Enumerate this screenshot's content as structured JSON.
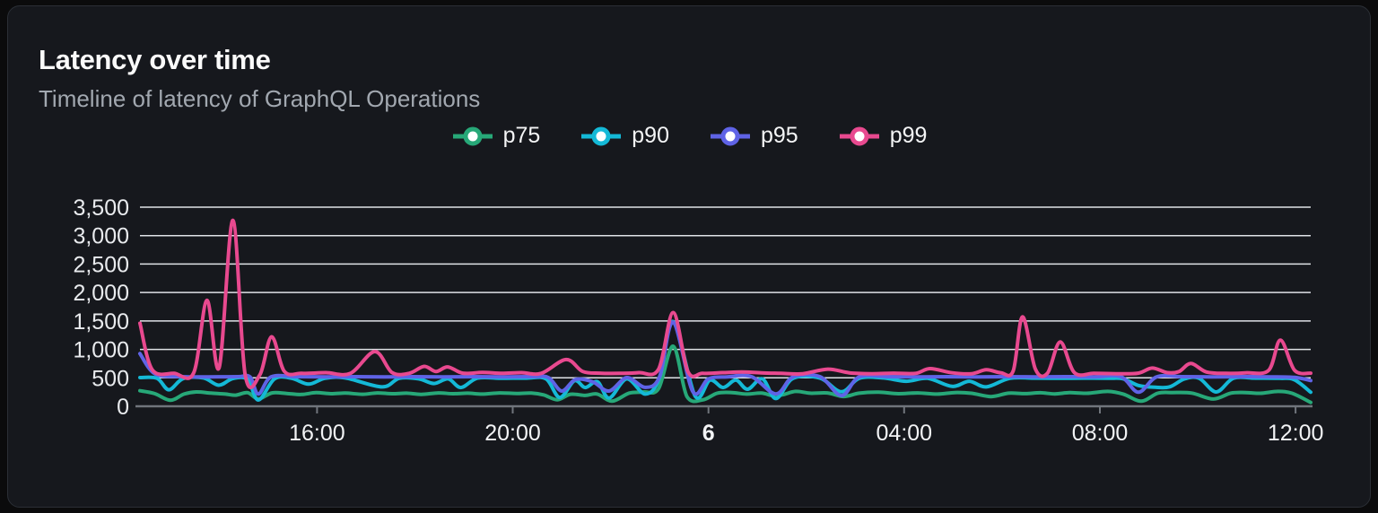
{
  "panel": {
    "title": "Latency over time",
    "subtitle": "Timeline of latency of GraphQL Operations"
  },
  "colors": {
    "page_bg": "#0b0b0c",
    "panel_bg": "#16181d",
    "panel_border": "#2b2f36",
    "grid": "#dfe2e7",
    "axis": "#70757c",
    "title_text": "#fafafa",
    "subtitle_text": "#a2a8b0",
    "tick_text": "#e9ebee",
    "p75": "#27a878",
    "p90": "#14b9d7",
    "p95": "#5f63e6",
    "p99": "#e8498f"
  },
  "chart_data": {
    "type": "line",
    "title": "Latency over time",
    "subtitle": "Timeline of latency of GraphQL Operations",
    "xlabel": "",
    "ylabel": "",
    "ylim": [
      0,
      3500
    ],
    "grid": "horizontal",
    "legend_position": "top-center",
    "y_axis": {
      "min": 0,
      "max": 3500,
      "step": 500,
      "tick_labels": [
        "0",
        "500",
        "1,000",
        "1,500",
        "2,000",
        "2,500",
        "3,000",
        "3,500"
      ]
    },
    "x_axis": {
      "unit": "hours-from-window-start",
      "window_hours": 23.93,
      "ticks": [
        {
          "h": 3.62,
          "label": "16:00",
          "bold": false
        },
        {
          "h": 7.62,
          "label": "20:00",
          "bold": false
        },
        {
          "h": 11.62,
          "label": "6",
          "bold": true
        },
        {
          "h": 15.62,
          "label": "04:00",
          "bold": false
        },
        {
          "h": 19.62,
          "label": "08:00",
          "bold": false
        },
        {
          "h": 23.62,
          "label": "12:00",
          "bold": false
        }
      ]
    },
    "series": [
      {
        "name": "p75",
        "color": "#27a878",
        "points": [
          [
            0,
            272
          ],
          [
            0.3,
            222
          ],
          [
            0.62,
            105
          ],
          [
            0.9,
            215
          ],
          [
            1.15,
            252
          ],
          [
            1.45,
            232
          ],
          [
            1.75,
            215
          ],
          [
            1.96,
            195
          ],
          [
            2.2,
            240
          ],
          [
            2.42,
            130
          ],
          [
            2.7,
            235
          ],
          [
            3.0,
            225
          ],
          [
            3.3,
            208
          ],
          [
            3.6,
            240
          ],
          [
            3.9,
            220
          ],
          [
            4.2,
            232
          ],
          [
            4.55,
            212
          ],
          [
            4.85,
            235
          ],
          [
            5.15,
            220
          ],
          [
            5.45,
            230
          ],
          [
            5.75,
            210
          ],
          [
            6.1,
            235
          ],
          [
            6.4,
            220
          ],
          [
            6.7,
            230
          ],
          [
            7.0,
            215
          ],
          [
            7.35,
            235
          ],
          [
            7.7,
            225
          ],
          [
            8.0,
            232
          ],
          [
            8.25,
            200
          ],
          [
            8.53,
            115
          ],
          [
            8.8,
            212
          ],
          [
            9.1,
            190
          ],
          [
            9.35,
            215
          ],
          [
            9.65,
            90
          ],
          [
            10.0,
            232
          ],
          [
            10.3,
            252
          ],
          [
            10.6,
            310
          ],
          [
            10.9,
            1055
          ],
          [
            11.18,
            170
          ],
          [
            11.5,
            112
          ],
          [
            11.8,
            230
          ],
          [
            12.1,
            242
          ],
          [
            12.4,
            215
          ],
          [
            12.7,
            232
          ],
          [
            12.95,
            185
          ],
          [
            13.15,
            205
          ],
          [
            13.4,
            262
          ],
          [
            13.7,
            230
          ],
          [
            14.05,
            235
          ],
          [
            14.38,
            172
          ],
          [
            14.7,
            230
          ],
          [
            15.1,
            248
          ],
          [
            15.5,
            220
          ],
          [
            15.9,
            235
          ],
          [
            16.3,
            215
          ],
          [
            16.66,
            242
          ],
          [
            17.0,
            228
          ],
          [
            17.4,
            170
          ],
          [
            17.75,
            230
          ],
          [
            18.1,
            222
          ],
          [
            18.4,
            238
          ],
          [
            18.7,
            218
          ],
          [
            19.0,
            240
          ],
          [
            19.35,
            228
          ],
          [
            19.78,
            262
          ],
          [
            20.1,
            215
          ],
          [
            20.47,
            90
          ],
          [
            20.8,
            228
          ],
          [
            21.1,
            242
          ],
          [
            21.5,
            232
          ],
          [
            21.94,
            128
          ],
          [
            22.3,
            232
          ],
          [
            22.6,
            242
          ],
          [
            22.9,
            228
          ],
          [
            23.26,
            262
          ],
          [
            23.55,
            228
          ],
          [
            23.93,
            68
          ]
        ]
      },
      {
        "name": "p90",
        "color": "#14b9d7",
        "points": [
          [
            0,
            505
          ],
          [
            0.35,
            492
          ],
          [
            0.59,
            290
          ],
          [
            0.88,
            485
          ],
          [
            1.3,
            498
          ],
          [
            1.61,
            370
          ],
          [
            1.9,
            488
          ],
          [
            2.2,
            470
          ],
          [
            2.42,
            110
          ],
          [
            2.75,
            482
          ],
          [
            3.1,
            492
          ],
          [
            3.45,
            390
          ],
          [
            3.78,
            492
          ],
          [
            4.2,
            498
          ],
          [
            4.95,
            340
          ],
          [
            5.3,
            492
          ],
          [
            5.7,
            482
          ],
          [
            6.01,
            400
          ],
          [
            6.3,
            482
          ],
          [
            6.56,
            330
          ],
          [
            6.9,
            495
          ],
          [
            7.4,
            492
          ],
          [
            7.9,
            495
          ],
          [
            8.3,
            482
          ],
          [
            8.58,
            155
          ],
          [
            8.88,
            450
          ],
          [
            9.1,
            330
          ],
          [
            9.35,
            432
          ],
          [
            9.59,
            145
          ],
          [
            9.95,
            482
          ],
          [
            10.33,
            215
          ],
          [
            10.62,
            502
          ],
          [
            10.9,
            1490
          ],
          [
            11.35,
            175
          ],
          [
            11.65,
            460
          ],
          [
            11.92,
            330
          ],
          [
            12.18,
            460
          ],
          [
            12.42,
            300
          ],
          [
            12.72,
            482
          ],
          [
            13.0,
            135
          ],
          [
            13.35,
            492
          ],
          [
            13.9,
            495
          ],
          [
            14.34,
            255
          ],
          [
            14.7,
            492
          ],
          [
            15.2,
            498
          ],
          [
            15.66,
            440
          ],
          [
            16.1,
            492
          ],
          [
            16.6,
            350
          ],
          [
            16.95,
            440
          ],
          [
            17.3,
            340
          ],
          [
            17.78,
            492
          ],
          [
            18.3,
            495
          ],
          [
            18.8,
            492
          ],
          [
            19.3,
            495
          ],
          [
            19.8,
            492
          ],
          [
            20.1,
            482
          ],
          [
            20.41,
            365
          ],
          [
            20.75,
            335
          ],
          [
            21.05,
            342
          ],
          [
            21.35,
            482
          ],
          [
            21.65,
            492
          ],
          [
            22.0,
            252
          ],
          [
            22.35,
            492
          ],
          [
            22.8,
            495
          ],
          [
            23.3,
            492
          ],
          [
            23.6,
            465
          ],
          [
            23.93,
            248
          ]
        ]
      },
      {
        "name": "p95",
        "color": "#5f63e6",
        "points": [
          [
            0,
            925
          ],
          [
            0.3,
            572
          ],
          [
            0.8,
            522
          ],
          [
            1.4,
            517
          ],
          [
            2.0,
            521
          ],
          [
            2.25,
            517
          ],
          [
            2.42,
            215
          ],
          [
            2.68,
            517
          ],
          [
            3.2,
            521
          ],
          [
            3.8,
            517
          ],
          [
            4.4,
            521
          ],
          [
            5.0,
            517
          ],
          [
            5.6,
            521
          ],
          [
            6.2,
            517
          ],
          [
            6.8,
            521
          ],
          [
            7.4,
            517
          ],
          [
            8.0,
            521
          ],
          [
            8.35,
            505
          ],
          [
            8.62,
            268
          ],
          [
            8.9,
            470
          ],
          [
            9.25,
            432
          ],
          [
            9.59,
            268
          ],
          [
            9.95,
            505
          ],
          [
            10.33,
            332
          ],
          [
            10.62,
            521
          ],
          [
            10.9,
            1478
          ],
          [
            11.3,
            258
          ],
          [
            11.62,
            482
          ],
          [
            12.0,
            517
          ],
          [
            12.5,
            521
          ],
          [
            13.0,
            218
          ],
          [
            13.35,
            517
          ],
          [
            13.9,
            521
          ],
          [
            14.34,
            188
          ],
          [
            14.7,
            517
          ],
          [
            15.3,
            521
          ],
          [
            15.9,
            517
          ],
          [
            16.5,
            521
          ],
          [
            17.1,
            517
          ],
          [
            17.7,
            521
          ],
          [
            18.3,
            517
          ],
          [
            18.9,
            521
          ],
          [
            19.5,
            517
          ],
          [
            20.05,
            521
          ],
          [
            20.41,
            248
          ],
          [
            20.78,
            517
          ],
          [
            21.3,
            521
          ],
          [
            21.9,
            517
          ],
          [
            22.5,
            521
          ],
          [
            23.1,
            517
          ],
          [
            23.6,
            508
          ],
          [
            23.93,
            452
          ]
        ]
      },
      {
        "name": "p99",
        "color": "#e8498f",
        "points": [
          [
            0,
            1460
          ],
          [
            0.25,
            645
          ],
          [
            0.7,
            578
          ],
          [
            1.1,
            592
          ],
          [
            1.37,
            1862
          ],
          [
            1.62,
            680
          ],
          [
            1.9,
            3268
          ],
          [
            2.15,
            562
          ],
          [
            2.45,
            552
          ],
          [
            2.69,
            1222
          ],
          [
            2.95,
            615
          ],
          [
            3.3,
            578
          ],
          [
            3.8,
            592
          ],
          [
            4.3,
            578
          ],
          [
            4.8,
            962
          ],
          [
            5.15,
            595
          ],
          [
            5.5,
            578
          ],
          [
            5.81,
            702
          ],
          [
            6.05,
            612
          ],
          [
            6.29,
            692
          ],
          [
            6.6,
            582
          ],
          [
            7.0,
            595
          ],
          [
            7.4,
            578
          ],
          [
            7.8,
            592
          ],
          [
            8.2,
            578
          ],
          [
            8.71,
            822
          ],
          [
            9.05,
            612
          ],
          [
            9.4,
            582
          ],
          [
            9.8,
            578
          ],
          [
            10.2,
            592
          ],
          [
            10.6,
            652
          ],
          [
            10.9,
            1648
          ],
          [
            11.2,
            612
          ],
          [
            11.5,
            578
          ],
          [
            11.9,
            592
          ],
          [
            12.3,
            602
          ],
          [
            12.7,
            588
          ],
          [
            13.1,
            578
          ],
          [
            13.55,
            572
          ],
          [
            14.06,
            652
          ],
          [
            14.5,
            588
          ],
          [
            14.95,
            572
          ],
          [
            15.4,
            582
          ],
          [
            15.85,
            578
          ],
          [
            16.15,
            662
          ],
          [
            16.6,
            588
          ],
          [
            17.0,
            572
          ],
          [
            17.3,
            642
          ],
          [
            17.6,
            588
          ],
          [
            17.85,
            622
          ],
          [
            18.04,
            1572
          ],
          [
            18.3,
            658
          ],
          [
            18.55,
            582
          ],
          [
            18.81,
            1132
          ],
          [
            19.1,
            592
          ],
          [
            19.5,
            578
          ],
          [
            19.95,
            572
          ],
          [
            20.4,
            582
          ],
          [
            20.69,
            672
          ],
          [
            21.0,
            592
          ],
          [
            21.24,
            612
          ],
          [
            21.48,
            752
          ],
          [
            21.8,
            602
          ],
          [
            22.2,
            578
          ],
          [
            22.6,
            588
          ],
          [
            23.07,
            632
          ],
          [
            23.31,
            1162
          ],
          [
            23.6,
            632
          ],
          [
            23.93,
            582
          ]
        ]
      }
    ]
  }
}
